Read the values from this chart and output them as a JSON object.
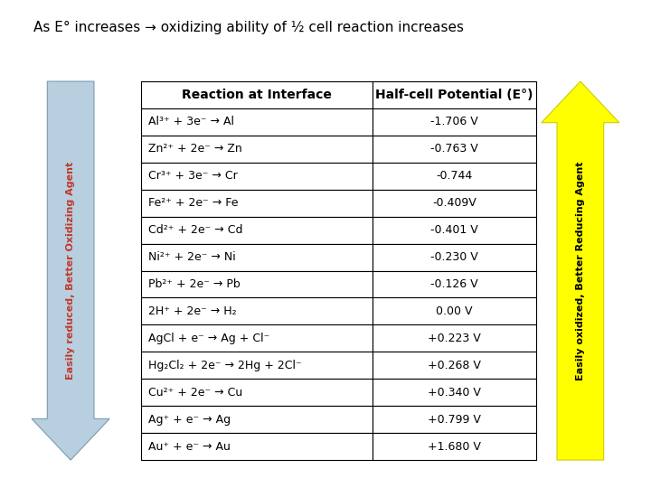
{
  "title": "As E° increases → oxidizing ability of ½ cell reaction increases",
  "col_headers": [
    "Reaction at Interface",
    "Half-cell Potential (E°)"
  ],
  "rows": [
    [
      "Al³⁺ + 3e⁻ → Al",
      "-1.706 V"
    ],
    [
      "Zn²⁺ + 2e⁻ → Zn",
      "-0.763 V"
    ],
    [
      "Cr³⁺ + 3e⁻ → Cr",
      "-0.744"
    ],
    [
      "Fe²⁺ + 2e⁻ → Fe",
      "-0.409V"
    ],
    [
      "Cd²⁺ + 2e⁻ → Cd",
      "-0.401 V"
    ],
    [
      "Ni²⁺ + 2e⁻ → Ni",
      "-0.230 V"
    ],
    [
      "Pb²⁺ + 2e⁻ → Pb",
      "-0.126 V"
    ],
    [
      "2H⁺ + 2e⁻ → H₂",
      "0.00 V"
    ],
    [
      "AgCl + e⁻ → Ag + Cl⁻",
      "+0.223 V"
    ],
    [
      "Hg₂Cl₂ + 2e⁻ → 2Hg + 2Cl⁻",
      "+0.268 V"
    ],
    [
      "Cu²⁺ + 2e⁻ → Cu",
      "+0.340 V"
    ],
    [
      "Ag⁺ + e⁻ → Ag",
      "+0.799 V"
    ],
    [
      "Au⁺ + e⁻ → Au",
      "+1.680 V"
    ]
  ],
  "left_arrow_color": "#b8cfe0",
  "left_arrow_text": "Easily reduced, Better Oxidizing Agent",
  "left_arrow_text_color": "#c0392b",
  "right_arrow_color": "#ffff00",
  "right_arrow_text": "Easily oxidized, Better Reducing Agent",
  "right_arrow_text_color": "#000000",
  "bg_color": "#ffffff",
  "border_color": "#000000",
  "title_fontsize": 11,
  "cell_fontsize": 9,
  "header_fontsize": 10
}
